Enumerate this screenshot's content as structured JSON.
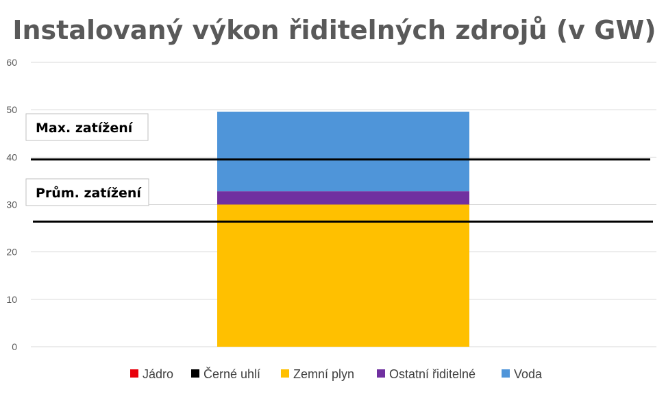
{
  "chart_data": {
    "type": "bar",
    "stacked": true,
    "title": "Instalovaný výkon řiditelných zdrojů (v GW)",
    "xlabel": "",
    "ylabel": "",
    "ylim": [
      0,
      60
    ],
    "yticks": [
      0,
      10,
      20,
      30,
      40,
      50,
      60
    ],
    "grid": true,
    "legend_position": "bottom",
    "categories": [
      ""
    ],
    "series": [
      {
        "name": "Jádro",
        "values": [
          0
        ],
        "color": "#e8000b"
      },
      {
        "name": "Černé uhlí",
        "values": [
          0
        ],
        "color": "#000000"
      },
      {
        "name": "Zemní plyn",
        "values": [
          30
        ],
        "color": "#ffc000"
      },
      {
        "name": "Ostatní řiditelné",
        "values": [
          2.8
        ],
        "color": "#7030a0"
      },
      {
        "name": "Voda",
        "values": [
          16.8
        ],
        "color": "#4f95d9"
      }
    ],
    "reference_lines": [
      {
        "label": "Max. zatížení",
        "value": 39.5
      },
      {
        "label": "Prům. zatížení",
        "value": 26.4
      }
    ]
  }
}
